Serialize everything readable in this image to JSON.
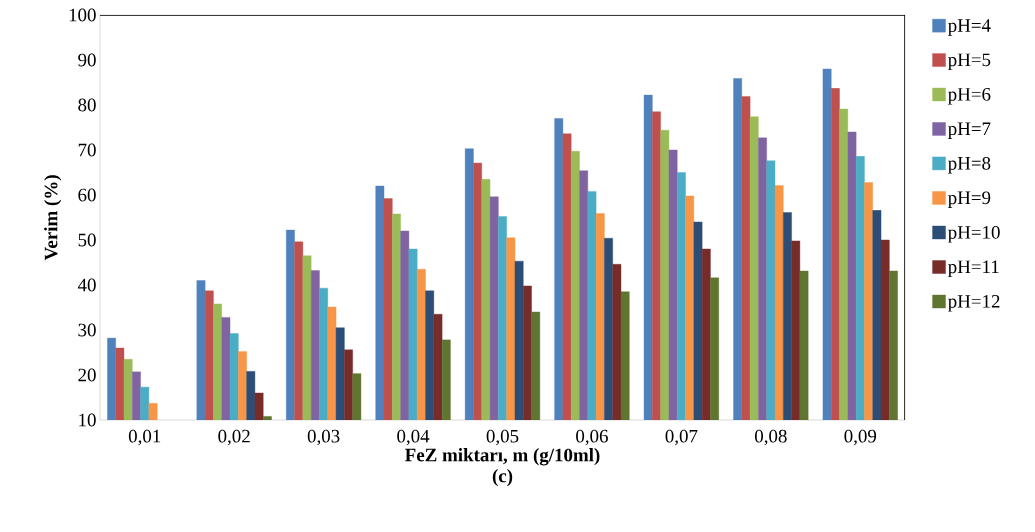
{
  "chart_data": {
    "type": "bar",
    "xlabel": "FeZ miktarı, m (g/10ml)",
    "ylabel": "Verim (%)",
    "annotations": [
      "(c)"
    ],
    "categories": [
      "0,01",
      "0,02",
      "0,03",
      "0,04",
      "0,05",
      "0,06",
      "0,07",
      "0,08",
      "0,09"
    ],
    "ylim": [
      10,
      100
    ],
    "yticks": [
      10,
      20,
      30,
      40,
      50,
      60,
      70,
      80,
      90,
      100
    ],
    "legend": "right",
    "series": [
      {
        "name": "pH=4",
        "color": "#4f81bd",
        "values": [
          28.2,
          41,
          52.2,
          62,
          70.3,
          77,
          82.2,
          85.9,
          88
        ]
      },
      {
        "name": "pH=5",
        "color": "#c0504d",
        "values": [
          26,
          38.7,
          49.6,
          59.2,
          67.1,
          73.6,
          78.5,
          81.9,
          83.7
        ]
      },
      {
        "name": "pH=6",
        "color": "#9bbb59",
        "values": [
          23.5,
          35.8,
          46.5,
          55.8,
          63.5,
          69.7,
          74.4,
          77.4,
          79.1
        ]
      },
      {
        "name": "pH=7",
        "color": "#8064a2",
        "values": [
          20.7,
          32.8,
          43.2,
          52,
          59.6,
          65.4,
          70,
          72.7,
          74
        ]
      },
      {
        "name": "pH=8",
        "color": "#4bacc6",
        "values": [
          17.3,
          29.2,
          39.3,
          48,
          55.2,
          60.8,
          65,
          67.6,
          68.6
        ]
      },
      {
        "name": "pH=9",
        "color": "#f79646",
        "values": [
          13.7,
          25.2,
          35.1,
          43.5,
          50.5,
          55.9,
          59.8,
          62.1,
          62.8
        ]
      },
      {
        "name": "pH=10",
        "color": "#2c4d75",
        "values": [
          null,
          20.8,
          30.5,
          38.7,
          45.3,
          50.4,
          54,
          56.1,
          56.6
        ]
      },
      {
        "name": "pH=11",
        "color": "#772c2a",
        "values": [
          null,
          16,
          25.6,
          33.5,
          39.8,
          44.6,
          48,
          49.8,
          50
        ]
      },
      {
        "name": "pH=12",
        "color": "#5f7530",
        "values": [
          null,
          10.8,
          20.3,
          27.8,
          34,
          38.5,
          41.6,
          43.1,
          43.1
        ]
      }
    ]
  }
}
